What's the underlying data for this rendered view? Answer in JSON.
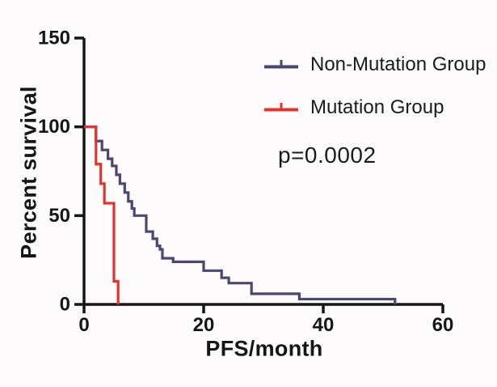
{
  "figure": {
    "background_color": "#fdfbfb",
    "axis_color": "#161616",
    "ylabel": "Percent survival",
    "xlabel": "PFS/month",
    "p_value_label": "p=0.0002",
    "legend": [
      {
        "label": "Non-Mutation Group",
        "color": "#4b4672",
        "marker": "km-censor-tick-line"
      },
      {
        "label": "Mutation Group",
        "color": "#e63329",
        "marker": "km-censor-tick-line"
      }
    ]
  },
  "chart_data": {
    "type": "line",
    "subtype": "kaplan-meier-step",
    "title": "",
    "xlabel": "PFS/month",
    "ylabel": "Percent survival",
    "xlim": [
      0,
      60
    ],
    "ylim": [
      0,
      150
    ],
    "xticks": [
      0,
      20,
      40,
      60
    ],
    "yticks": [
      0,
      50,
      100,
      150
    ],
    "grid": false,
    "legend_position": "upper right",
    "annotations": [
      "p=0.0002"
    ],
    "series": [
      {
        "name": "Non-Mutation Group",
        "color": "#4b4672",
        "x": [
          0,
          2,
          3,
          4,
          4.7,
          5.4,
          6,
          6.8,
          7.4,
          8,
          8.4,
          10.4,
          11.5,
          12.2,
          12.7,
          13.1,
          14.9,
          20,
          23,
          24.2,
          28,
          36,
          52
        ],
        "y": [
          100,
          92,
          87,
          82,
          78,
          73,
          68,
          63,
          58,
          54,
          50,
          41,
          37,
          33,
          31,
          26,
          24,
          19,
          15,
          12,
          6,
          3,
          0
        ]
      },
      {
        "name": "Mutation Group",
        "color": "#e63329",
        "x": [
          0,
          2,
          2.8,
          3.4,
          5,
          5.7
        ],
        "y": [
          100,
          79,
          68,
          57,
          13,
          0
        ]
      }
    ]
  }
}
